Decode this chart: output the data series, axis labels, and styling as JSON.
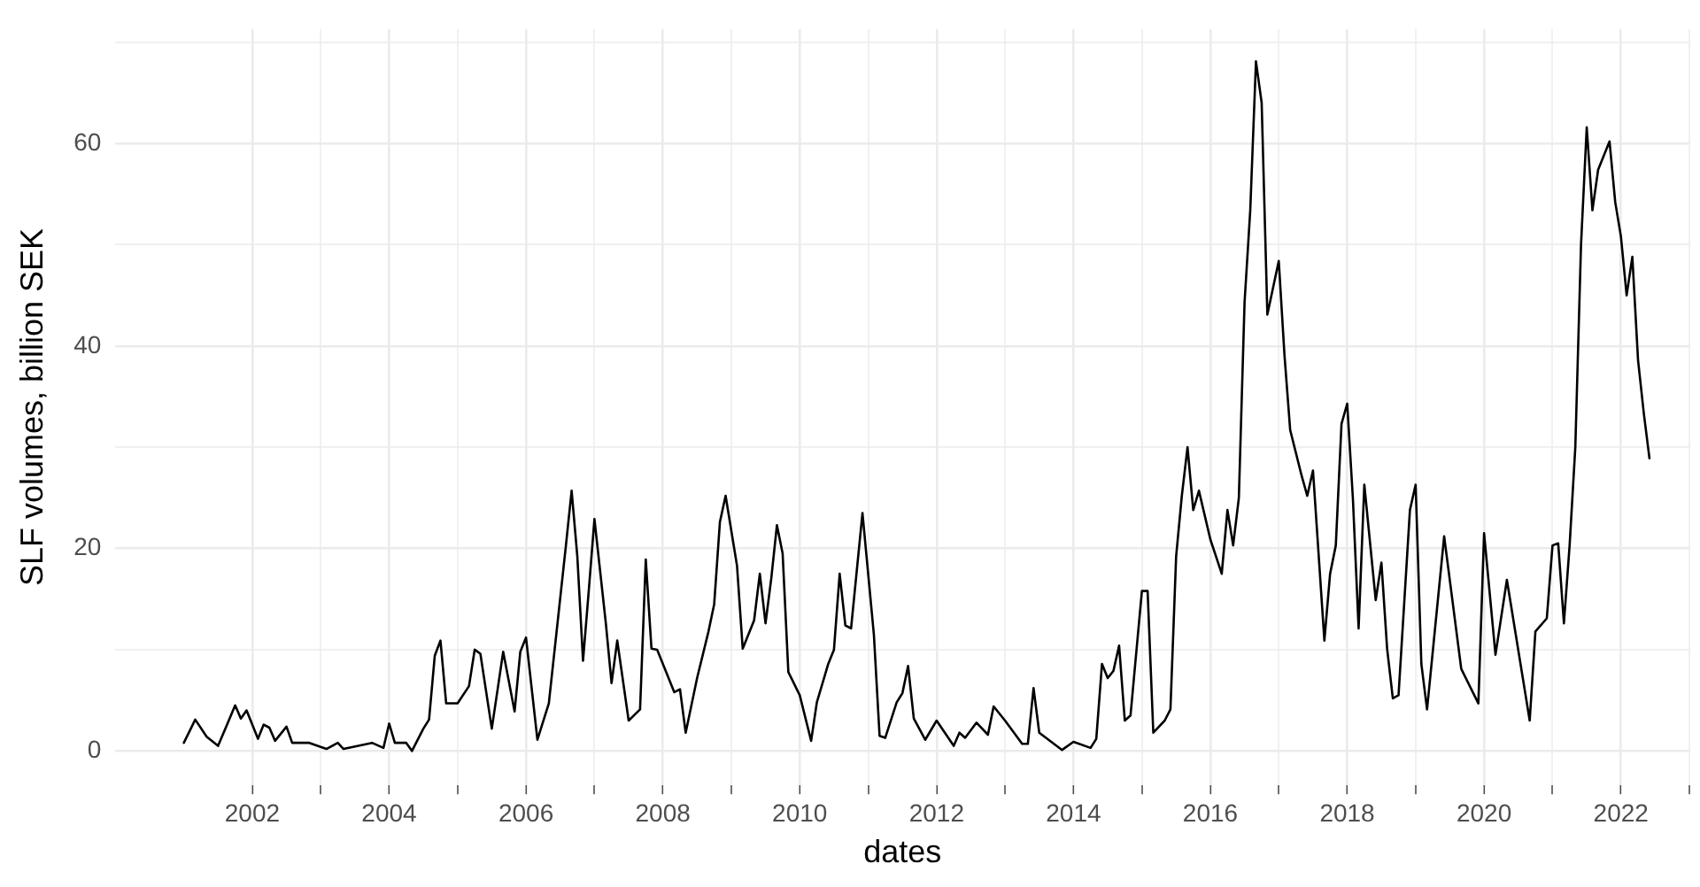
{
  "chart_data": {
    "type": "line",
    "xlabel": "dates",
    "ylabel": "SLF volumes, billion SEK",
    "grid": true,
    "legend": false,
    "marker": "none",
    "line_style": "solid",
    "xlim": [
      "2000-01",
      "2023-01"
    ],
    "xticks": [
      "2002",
      {
        "value": "2003",
        "label": null
      },
      "2004",
      {
        "value": "2005",
        "label": null
      },
      "2006",
      {
        "value": "2007",
        "label": null
      },
      "2008",
      {
        "value": "2009",
        "label": null
      },
      "2010",
      {
        "value": "2011",
        "label": null
      },
      "2012",
      {
        "value": "2013",
        "label": null
      },
      "2014",
      {
        "value": "2015",
        "label": null
      },
      "2016",
      {
        "value": "2017",
        "label": null
      },
      "2018",
      {
        "value": "2019",
        "label": null
      },
      "2020",
      {
        "value": "2021",
        "label": null
      },
      "2022",
      {
        "value": "2023",
        "label": null
      }
    ],
    "ylim": [
      -3.4,
      71.3
    ],
    "yticks": [
      0,
      {
        "value": 10,
        "label": null
      },
      20,
      {
        "value": 30,
        "label": null
      },
      40,
      {
        "value": 50,
        "label": null
      },
      60,
      {
        "value": 70,
        "label": null
      }
    ],
    "series": [
      {
        "color": "#000000",
        "x": [
          "2001-01",
          "2001-03",
          "2001-05",
          "2001-07",
          "2001-10",
          "2001-11",
          "2001-12",
          "2002-02",
          "2002-03",
          "2002-04",
          "2002-05",
          "2002-07",
          "2002-08",
          "2002-11",
          "2003-02",
          "2003-04",
          "2003-05",
          "2003-10",
          "2003-12",
          "2004-01",
          "2004-02",
          "2004-04",
          "2004-05",
          "2004-07",
          "2004-08",
          "2004-09",
          "2004-10",
          "2004-11",
          "2005-01",
          "2005-03",
          "2005-04",
          "2005-05",
          "2005-07",
          "2005-09",
          "2005-11",
          "2005-12",
          "2006-01",
          "2006-03",
          "2006-05",
          "2006-08",
          "2006-09",
          "2006-10",
          "2006-11",
          "2006-12",
          "2007-01",
          "2007-03",
          "2007-04",
          "2007-05",
          "2007-07",
          "2007-09",
          "2007-10",
          "2007-11",
          "2007-12",
          "2008-03",
          "2008-04",
          "2008-05",
          "2008-07",
          "2008-09",
          "2008-10",
          "2008-11",
          "2008-12",
          "2009-02",
          "2009-03",
          "2009-05",
          "2009-06",
          "2009-07",
          "2009-08",
          "2009-09",
          "2009-10",
          "2009-11",
          "2010-01",
          "2010-03",
          "2010-04",
          "2010-06",
          "2010-07",
          "2010-08",
          "2010-09",
          "2010-10",
          "2010-12",
          "2011-02",
          "2011-03",
          "2011-04",
          "2011-06",
          "2011-07",
          "2011-08",
          "2011-09",
          "2011-11",
          "2012-01",
          "2012-04",
          "2012-05",
          "2012-06",
          "2012-08",
          "2012-10",
          "2012-11",
          "2013-01",
          "2013-04",
          "2013-05",
          "2013-06",
          "2013-07",
          "2013-11",
          "2014-01",
          "2014-04",
          "2014-05",
          "2014-06",
          "2014-07",
          "2014-08",
          "2014-09",
          "2014-10",
          "2014-11",
          "2015-01",
          "2015-02",
          "2015-03",
          "2015-05",
          "2015-06",
          "2015-07",
          "2015-08",
          "2015-09",
          "2015-10",
          "2015-11",
          "2016-01",
          "2016-03",
          "2016-04",
          "2016-05",
          "2016-06",
          "2016-07",
          "2016-08",
          "2016-09",
          "2016-10",
          "2016-11",
          "2017-01",
          "2017-02",
          "2017-03",
          "2017-05",
          "2017-06",
          "2017-07",
          "2017-09",
          "2017-10",
          "2017-11",
          "2017-12",
          "2018-01",
          "2018-02",
          "2018-03",
          "2018-04",
          "2018-06",
          "2018-07",
          "2018-08",
          "2018-09",
          "2018-10",
          "2018-12",
          "2019-01",
          "2019-02",
          "2019-03",
          "2019-06",
          "2019-09",
          "2019-12",
          "2020-01",
          "2020-03",
          "2020-05",
          "2020-09",
          "2020-10",
          "2020-12",
          "2021-01",
          "2021-02",
          "2021-03",
          "2021-04",
          "2021-05",
          "2021-06",
          "2021-07",
          "2021-08",
          "2021-09",
          "2021-11",
          "2021-12",
          "2022-01",
          "2022-02",
          "2022-03",
          "2022-04",
          "2022-05",
          "2022-06"
        ],
        "values": [
          0.8,
          3.1,
          1.4,
          0.5,
          4.5,
          3.2,
          4.0,
          1.2,
          2.6,
          2.3,
          1.0,
          2.4,
          0.8,
          0.8,
          0.2,
          0.8,
          0.2,
          0.8,
          0.3,
          2.7,
          0.8,
          0.8,
          0.0,
          2.2,
          3.1,
          9.4,
          10.9,
          4.7,
          4.7,
          6.4,
          10.0,
          9.6,
          2.2,
          9.8,
          3.9,
          9.8,
          11.2,
          1.1,
          4.7,
          20.3,
          25.7,
          19.2,
          8.9,
          15.8,
          22.9,
          12.6,
          6.7,
          10.9,
          3.0,
          4.1,
          18.9,
          10.1,
          10.0,
          5.8,
          6.1,
          1.8,
          7.2,
          11.8,
          14.5,
          22.6,
          25.2,
          18.3,
          10.1,
          12.9,
          17.5,
          12.6,
          17.0,
          22.3,
          19.5,
          7.8,
          5.5,
          1.0,
          4.8,
          8.6,
          10.0,
          17.5,
          12.4,
          12.1,
          23.5,
          11.5,
          1.5,
          1.3,
          4.8,
          5.7,
          8.4,
          3.2,
          1.1,
          3.0,
          0.5,
          1.8,
          1.3,
          2.8,
          1.6,
          4.4,
          3.0,
          0.7,
          0.7,
          6.2,
          1.8,
          0.1,
          0.9,
          0.3,
          1.2,
          8.6,
          7.2,
          7.9,
          10.4,
          3.0,
          3.5,
          15.8,
          15.8,
          1.8,
          3.0,
          4.1,
          19.2,
          25.2,
          30.0,
          23.8,
          25.7,
          20.9,
          17.5,
          23.8,
          20.3,
          25.0,
          44.3,
          53.4,
          68.1,
          64.0,
          43.1,
          48.4,
          39.1,
          31.7,
          27.2,
          25.2,
          27.7,
          10.9,
          17.5,
          20.3,
          32.3,
          34.3,
          24.9,
          12.1,
          26.3,
          14.9,
          18.6,
          10.1,
          5.2,
          5.5,
          23.8,
          26.3,
          8.6,
          4.1,
          21.2,
          8.1,
          4.7,
          21.5,
          9.5,
          16.9,
          3.0,
          11.8,
          13.1,
          20.3,
          20.5,
          12.6,
          20.3,
          30.0,
          50.0,
          61.6,
          53.4,
          57.4,
          60.2,
          54.2,
          50.8,
          45.0,
          48.8,
          38.6,
          33.4,
          28.9
        ]
      }
    ]
  }
}
